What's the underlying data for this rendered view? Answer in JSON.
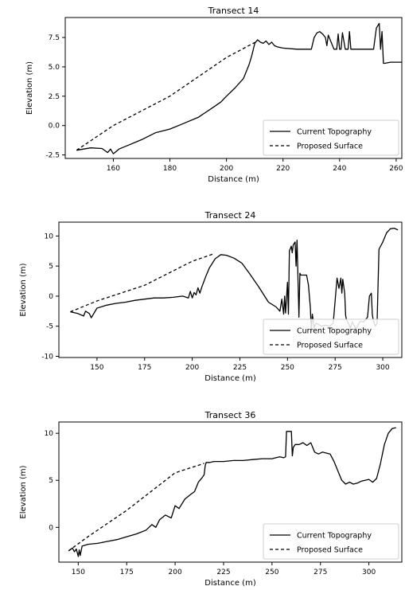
{
  "chart_data": [
    {
      "type": "line",
      "title": "Transect 14",
      "xlabel": "Distance (m)",
      "ylabel": "Elevation (m)",
      "xlim": [
        143,
        262
      ],
      "ylim": [
        -2.8,
        9.2
      ],
      "xticks": [
        160,
        180,
        200,
        220,
        240,
        260
      ],
      "xtick_labels": [
        "160",
        "180",
        "200",
        "220",
        "240",
        "260"
      ],
      "yticks": [
        -2.5,
        0.0,
        2.5,
        5.0,
        7.5
      ],
      "ytick_labels": [
        "-2.5",
        "0.0",
        "2.5",
        "5.0",
        "7.5"
      ],
      "grid": false,
      "legend_position": "lower-right",
      "series": [
        {
          "name": "Current Topography",
          "style": "solid",
          "color": "#000000",
          "x": [
            147,
            152,
            156,
            158,
            159,
            160,
            161,
            162,
            165,
            170,
            175,
            180,
            185,
            190,
            195,
            198,
            200,
            203,
            206,
            208,
            209,
            210,
            211,
            212,
            213,
            214,
            215,
            216,
            217,
            218,
            220,
            225,
            230,
            231,
            232,
            233,
            234,
            235,
            235.5,
            236,
            238,
            239,
            239.5,
            240,
            240.5,
            241,
            242,
            243,
            243.5,
            244,
            244.5,
            245,
            247,
            250,
            252,
            253,
            254,
            254.5,
            255,
            255.5,
            256,
            258,
            262
          ],
          "y": [
            -2.1,
            -1.9,
            -1.95,
            -2.3,
            -2.0,
            -2.4,
            -2.2,
            -2.0,
            -1.7,
            -1.2,
            -0.6,
            -0.3,
            0.2,
            0.7,
            1.5,
            2.0,
            2.5,
            3.2,
            4.0,
            5.2,
            6.0,
            7.0,
            7.3,
            7.1,
            7.0,
            7.2,
            6.9,
            7.1,
            6.8,
            6.7,
            6.6,
            6.5,
            6.5,
            7.5,
            7.9,
            8.0,
            7.8,
            7.5,
            6.8,
            7.7,
            6.5,
            6.5,
            7.8,
            6.5,
            6.5,
            7.9,
            6.5,
            6.5,
            8.0,
            6.5,
            6.5,
            6.5,
            6.5,
            6.5,
            6.5,
            8.3,
            8.7,
            6.5,
            8.0,
            5.3,
            5.3,
            5.4,
            5.4
          ]
        },
        {
          "name": "Proposed Surface",
          "style": "dashed",
          "color": "#000000",
          "x": [
            147,
            160,
            180,
            200,
            211
          ],
          "y": [
            -2.1,
            0.0,
            2.5,
            5.8,
            7.2
          ]
        }
      ]
    },
    {
      "type": "line",
      "title": "Transect 24",
      "xlabel": "Distance (m)",
      "ylabel": "Elevation (m)",
      "xlim": [
        130,
        310
      ],
      "ylim": [
        -10.2,
        12.3
      ],
      "xticks": [
        150,
        175,
        200,
        225,
        250,
        275,
        300
      ],
      "xtick_labels": [
        "150",
        "175",
        "200",
        "225",
        "250",
        "275",
        "300"
      ],
      "yticks": [
        -10,
        -5,
        0,
        5,
        10
      ],
      "ytick_labels": [
        "-10",
        "-5",
        "0",
        "5",
        "10"
      ],
      "grid": false,
      "legend_position": "lower-right",
      "series": [
        {
          "name": "Current Topography",
          "style": "solid",
          "color": "#000000",
          "x": [
            136,
            140,
            143,
            144,
            146,
            147,
            150,
            155,
            160,
            165,
            170,
            175,
            180,
            185,
            190,
            195,
            198,
            199,
            200,
            201,
            202,
            203,
            204,
            205,
            207,
            209,
            210,
            212,
            215,
            218,
            222,
            226,
            230,
            235,
            240,
            244,
            246,
            247,
            248,
            248.5,
            249,
            250,
            250.5,
            251,
            252,
            252.5,
            253,
            254,
            254.5,
            255,
            256,
            256.5,
            257,
            260,
            261,
            262,
            262.5,
            263,
            264,
            265,
            268,
            270,
            272,
            274,
            276,
            277,
            278,
            278.5,
            279,
            280,
            280.5,
            281,
            282,
            283,
            284,
            286,
            288,
            290,
            292,
            293,
            294,
            294.5,
            295,
            296,
            297,
            298,
            300,
            302,
            304,
            306,
            308
          ],
          "y": [
            -2.6,
            -2.9,
            -3.3,
            -2.5,
            -2.9,
            -3.6,
            -2.0,
            -1.5,
            -1.2,
            -1.0,
            -0.7,
            -0.5,
            -0.3,
            -0.3,
            -0.2,
            0.0,
            -0.3,
            0.8,
            -0.3,
            0.6,
            0.2,
            1.4,
            0.5,
            1.5,
            3.2,
            4.7,
            5.2,
            6.2,
            6.9,
            6.8,
            6.3,
            5.5,
            3.8,
            1.5,
            -1.0,
            -1.8,
            -2.5,
            -0.5,
            -3.0,
            0.0,
            -2.8,
            2.3,
            -3.0,
            7.5,
            8.3,
            7.2,
            8.5,
            9.0,
            5.0,
            9.3,
            -3.5,
            3.8,
            3.5,
            3.5,
            1.8,
            -2.0,
            -6.0,
            -3.0,
            -5.2,
            -4.5,
            -5.0,
            -4.8,
            -5.0,
            -4.5,
            3.0,
            1.3,
            3.0,
            0.5,
            2.8,
            0.5,
            -3.2,
            -4.0,
            -4.5,
            -5.3,
            -4.3,
            -5.5,
            -4.2,
            -4.3,
            -3.5,
            0.0,
            0.5,
            -3.0,
            -4.0,
            -5.0,
            -4.5,
            7.8,
            9.0,
            10.5,
            11.2,
            11.3,
            11.0
          ]
        },
        {
          "name": "Proposed Surface",
          "style": "dashed",
          "color": "#000000",
          "x": [
            136,
            150,
            175,
            200,
            211
          ],
          "y": [
            -2.6,
            -0.8,
            1.8,
            5.8,
            7.0
          ]
        }
      ]
    },
    {
      "type": "line",
      "title": "Transect 36",
      "xlabel": "Distance (m)",
      "ylabel": "Elevation (m)",
      "xlim": [
        140,
        317
      ],
      "ylim": [
        -3.7,
        11.2
      ],
      "xticks": [
        150,
        175,
        200,
        225,
        250,
        275,
        300
      ],
      "xtick_labels": [
        "150",
        "175",
        "200",
        "225",
        "250",
        "275",
        "300"
      ],
      "yticks": [
        0,
        5,
        10
      ],
      "ytick_labels": [
        "0",
        "5",
        "10"
      ],
      "grid": false,
      "legend_position": "lower-right",
      "series": [
        {
          "name": "Current Topography",
          "style": "solid",
          "color": "#000000",
          "x": [
            145,
            147,
            148,
            149,
            150,
            150.5,
            151,
            152,
            155,
            160,
            165,
            170,
            175,
            180,
            185,
            188,
            190,
            192,
            195,
            198,
            200,
            202,
            205,
            208,
            210,
            212,
            214,
            215,
            215.5,
            216,
            218,
            220,
            225,
            230,
            235,
            240,
            245,
            250,
            252,
            254,
            256,
            257,
            257.5,
            258,
            260,
            260.5,
            261,
            262,
            264,
            266,
            268,
            270,
            272,
            274,
            276,
            278,
            280,
            282,
            284,
            286,
            288,
            290,
            292,
            294,
            296,
            298,
            300,
            302,
            304,
            306,
            308,
            310,
            312,
            314
          ],
          "y": [
            -2.5,
            -2.2,
            -2.6,
            -2.3,
            -3.1,
            -2.4,
            -3.0,
            -2.0,
            -1.8,
            -1.7,
            -1.5,
            -1.3,
            -1.0,
            -0.7,
            -0.3,
            0.3,
            0.0,
            0.8,
            1.3,
            1.0,
            2.3,
            2.0,
            3.0,
            3.5,
            3.8,
            4.8,
            5.3,
            5.6,
            6.5,
            6.9,
            6.9,
            7.0,
            7.0,
            7.1,
            7.1,
            7.2,
            7.3,
            7.3,
            7.4,
            7.5,
            7.4,
            7.5,
            10.2,
            10.2,
            10.2,
            7.6,
            8.5,
            8.8,
            8.8,
            9.0,
            8.7,
            9.0,
            8.0,
            7.8,
            8.0,
            7.9,
            7.8,
            7.0,
            6.0,
            5.0,
            4.6,
            4.8,
            4.6,
            4.7,
            4.9,
            5.0,
            5.1,
            4.8,
            5.2,
            6.8,
            8.8,
            10.0,
            10.5,
            10.6
          ]
        },
        {
          "name": "Proposed Surface",
          "style": "dashed",
          "color": "#000000",
          "x": [
            145,
            155,
            175,
            200,
            215
          ],
          "y": [
            -2.5,
            -1.0,
            1.8,
            5.8,
            6.8
          ]
        }
      ]
    }
  ]
}
